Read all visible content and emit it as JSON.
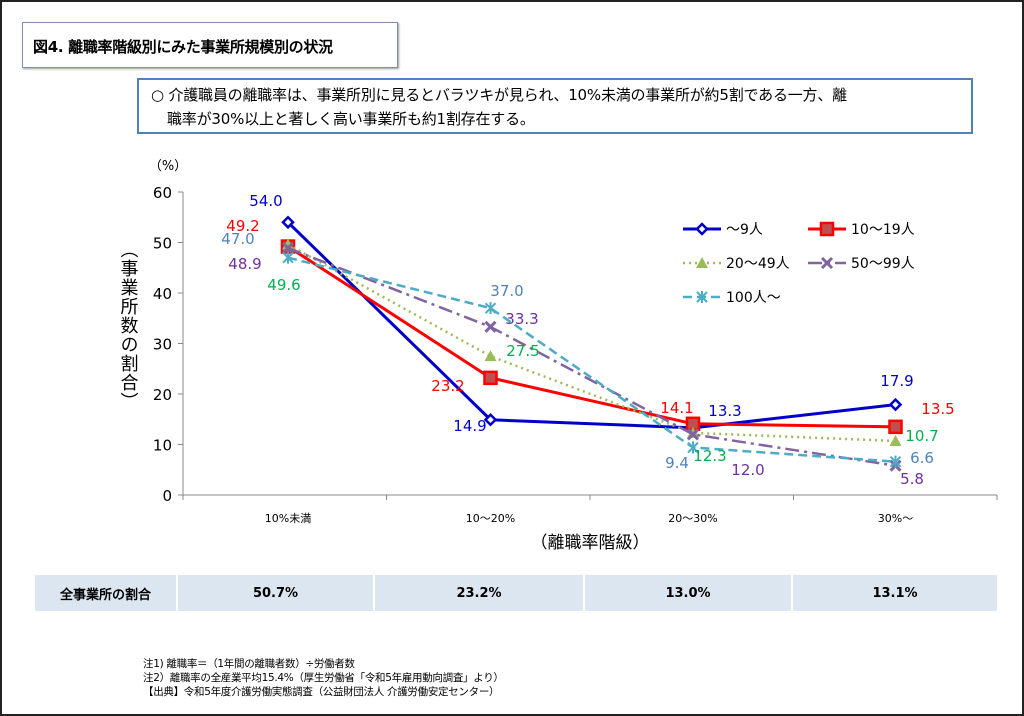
{
  "title": "図4. 離職率階級別にみた事業所規模別の状況",
  "summary": {
    "line1": "○  介護職員の離職率は、事業所別に見るとバラツキが見られ、10%未満の事業所が約5割である一方、離",
    "line2": "職率が30%以上と著しく高い事業所も約1割存在する。"
  },
  "chart_data": {
    "type": "line",
    "title": "",
    "xlabel": "（離職率階級）",
    "ylabel": "（事業所数の割合）",
    "yunit": "（%）",
    "ylim": [
      0,
      60
    ],
    "yticks": [
      0,
      10,
      20,
      30,
      40,
      50,
      60
    ],
    "categories": [
      "10%未満",
      "10〜20%",
      "20〜30%",
      "30%〜"
    ],
    "legend_position": "top-right",
    "series": [
      {
        "name": "〜9人",
        "values": [
          54.0,
          14.9,
          13.3,
          17.9
        ],
        "color": "#0000c8",
        "label_color": "#0000c8"
      },
      {
        "name": "10〜19人",
        "values": [
          49.2,
          23.2,
          14.1,
          13.5
        ],
        "color": "#ff0000",
        "label_color": "#ff0000"
      },
      {
        "name": "20〜49人",
        "values": [
          49.6,
          27.5,
          12.3,
          10.7
        ],
        "color": "#9bbb59",
        "label_color": "#00b050"
      },
      {
        "name": "50〜99人",
        "values": [
          48.9,
          33.3,
          12.0,
          5.8
        ],
        "color": "#8064a2",
        "label_color": "#7030a0"
      },
      {
        "name": "100人〜",
        "values": [
          47.0,
          37.0,
          9.4,
          6.6
        ],
        "color": "#4bacc6",
        "label_color": "#4f81bd"
      }
    ]
  },
  "table": {
    "header": "全事業所の割合",
    "values": [
      "50.7%",
      "23.2%",
      "13.0%",
      "13.1%"
    ]
  },
  "notes": [
    "注1) 離職率＝（1年間の離職者数）÷労働者数",
    "注2）離職率の全産業平均15.4%（厚生労働省「令和5年雇用動向調査」より）",
    "【出典】令和5年度介護労働実態調査（公益財団法人 介護労働安定センター）"
  ]
}
